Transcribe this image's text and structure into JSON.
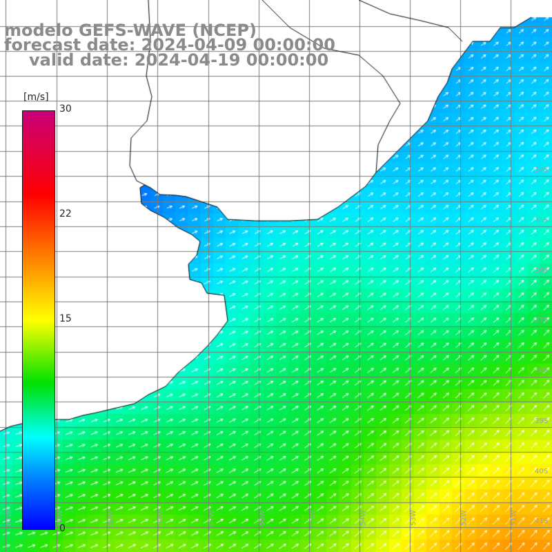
{
  "title": {
    "line1": "modelo GEFS-WAVE (NCEP)",
    "line2": "forecast date: 2024-04-09 00:00:00",
    "line3": "valid date: 2024-04-19 00:00:00"
  },
  "colorbar": {
    "unit": "[m/s]",
    "ticks": [
      "30",
      "22",
      "15",
      "0"
    ],
    "colors": [
      "#c8007a",
      "#ff0000",
      "#ff8000",
      "#ffff00",
      "#00e000",
      "#00ffff",
      "#0080ff",
      "#0000ff"
    ]
  },
  "axes": {
    "lat_labels": [
      "34S",
      "35S",
      "36S",
      "37S",
      "38S",
      "39S",
      "40S",
      "41S"
    ],
    "lon_labels": [
      "61W",
      "60W",
      "59W",
      "58W",
      "57W",
      "56W",
      "55W",
      "54W",
      "53W",
      "52W",
      "51W"
    ]
  },
  "map": {
    "region": "Rio de la Plata / Uruguay / Argentina coast",
    "variable": "wind speed",
    "grid": true,
    "arrows": true,
    "land_color": "#ffffff",
    "coast_color": "#000000"
  }
}
